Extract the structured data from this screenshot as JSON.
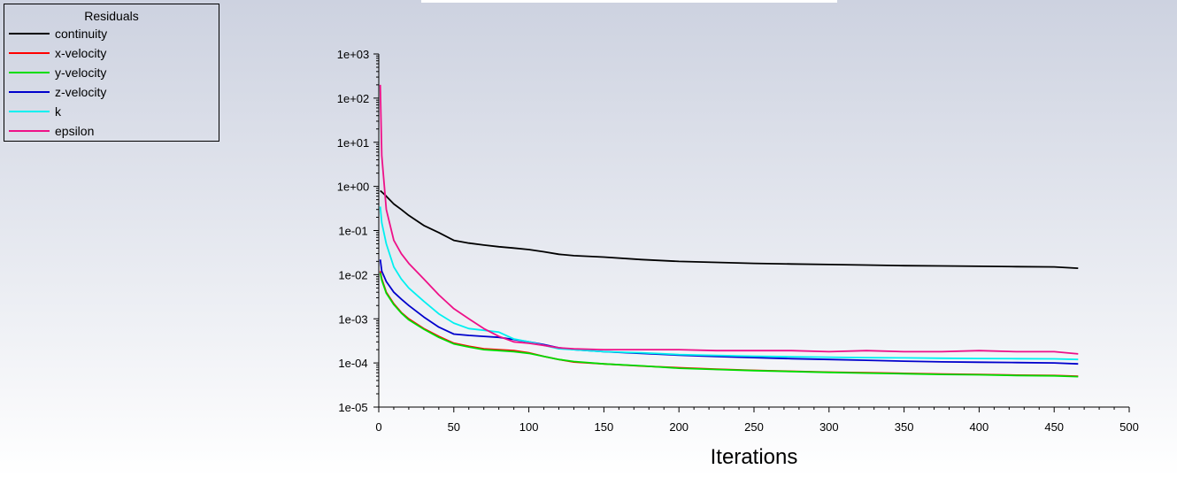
{
  "chart_data": {
    "type": "line",
    "title": "",
    "xlabel": "Iterations",
    "ylabel": "",
    "yscale": "log",
    "xlim": [
      0,
      500
    ],
    "ylim": [
      1e-05,
      1000
    ],
    "x_ticks": [
      0,
      50,
      100,
      150,
      200,
      250,
      300,
      350,
      400,
      450,
      500
    ],
    "x_tick_labels": [
      "0",
      "50",
      "100",
      "150",
      "200",
      "250",
      "300",
      "350",
      "400",
      "450",
      "500"
    ],
    "y_ticks": [
      1e-05,
      0.0001,
      0.001,
      0.01,
      0.1,
      1,
      10,
      100,
      1000
    ],
    "y_tick_labels": [
      "1e-05",
      "1e-04",
      "1e-03",
      "1e-02",
      "1e-01",
      "1e+00",
      "1e+01",
      "1e+02",
      "1e+03"
    ],
    "legend": {
      "title": "Residuals",
      "placement": "top-left",
      "entries": [
        "continuity",
        "x-velocity",
        "y-velocity",
        "z-velocity",
        "k",
        "epsilon"
      ]
    },
    "grid": false,
    "x": [
      1,
      2,
      5,
      10,
      15,
      20,
      30,
      40,
      50,
      60,
      70,
      80,
      90,
      100,
      110,
      120,
      130,
      150,
      175,
      200,
      225,
      250,
      275,
      300,
      325,
      350,
      375,
      400,
      425,
      450,
      466
    ],
    "series": [
      {
        "name": "continuity",
        "color": "#000000",
        "values": [
          0.8,
          0.75,
          0.6,
          0.4,
          0.3,
          0.22,
          0.13,
          0.09,
          0.06,
          0.052,
          0.047,
          0.043,
          0.04,
          0.037,
          0.033,
          0.029,
          0.027,
          0.025,
          0.022,
          0.02,
          0.019,
          0.018,
          0.0175,
          0.017,
          0.0165,
          0.016,
          0.0158,
          0.0155,
          0.0152,
          0.015,
          0.014
        ]
      },
      {
        "name": "x-velocity",
        "color": "#ff0000",
        "values": [
          0.012,
          0.008,
          0.004,
          0.0022,
          0.0014,
          0.001,
          0.0006,
          0.0004,
          0.00028,
          0.00024,
          0.00021,
          0.0002,
          0.00019,
          0.00017,
          0.00014,
          0.00012,
          0.000105,
          9.5e-05,
          8.5e-05,
          7.8e-05,
          7.2e-05,
          6.8e-05,
          6.5e-05,
          6.2e-05,
          6e-05,
          5.8e-05,
          5.6e-05,
          5.5e-05,
          5.3e-05,
          5.2e-05,
          5e-05
        ]
      },
      {
        "name": "y-velocity",
        "color": "#00dd00",
        "values": [
          0.011,
          0.0075,
          0.0038,
          0.0021,
          0.00135,
          0.00095,
          0.00058,
          0.00038,
          0.00027,
          0.00023,
          0.0002,
          0.00019,
          0.00018,
          0.000165,
          0.00014,
          0.00012,
          0.000108,
          9.5e-05,
          8.6e-05,
          7.6e-05,
          7.1e-05,
          6.7e-05,
          6.4e-05,
          6.1e-05,
          5.9e-05,
          5.7e-05,
          5.5e-05,
          5.4e-05,
          5.2e-05,
          5.1e-05,
          4.9e-05
        ]
      },
      {
        "name": "z-velocity",
        "color": "#0000cc",
        "values": [
          0.022,
          0.012,
          0.007,
          0.004,
          0.0028,
          0.002,
          0.0011,
          0.00065,
          0.00045,
          0.00042,
          0.0004,
          0.00038,
          0.00034,
          0.0003,
          0.00026,
          0.00022,
          0.0002,
          0.00018,
          0.000165,
          0.00015,
          0.00014,
          0.000132,
          0.000125,
          0.00012,
          0.000115,
          0.00011,
          0.000106,
          0.000104,
          0.000102,
          0.0001,
          9.5e-05
        ]
      },
      {
        "name": "k",
        "color": "#00f0f0",
        "values": [
          0.35,
          0.15,
          0.05,
          0.015,
          0.008,
          0.005,
          0.0025,
          0.0013,
          0.0008,
          0.0006,
          0.00055,
          0.0005,
          0.00035,
          0.0003,
          0.00025,
          0.00021,
          0.0002,
          0.00018,
          0.00017,
          0.000155,
          0.000148,
          0.000142,
          0.000138,
          0.000135,
          0.000132,
          0.00013,
          0.000128,
          0.000126,
          0.000125,
          0.000124,
          0.00012
        ]
      },
      {
        "name": "epsilon",
        "color": "#ee1188",
        "values": [
          200,
          5,
          0.3,
          0.06,
          0.03,
          0.018,
          0.008,
          0.0035,
          0.0017,
          0.001,
          0.0006,
          0.0004,
          0.0003,
          0.00028,
          0.00025,
          0.00022,
          0.00021,
          0.0002,
          0.0002,
          0.0002,
          0.00019,
          0.00019,
          0.00019,
          0.00018,
          0.00019,
          0.00018,
          0.00018,
          0.00019,
          0.00018,
          0.00018,
          0.00016
        ]
      }
    ]
  }
}
